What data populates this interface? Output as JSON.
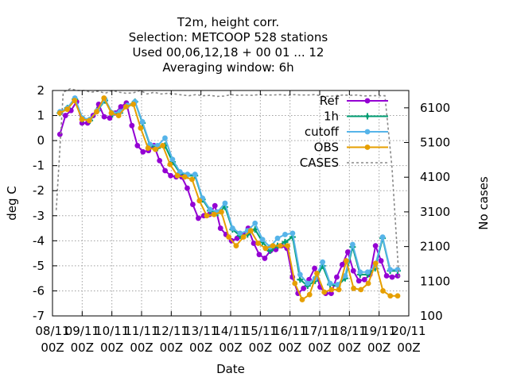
{
  "title_lines": [
    "T2m, height corr.",
    "Selection: METCOOP    528 stations",
    "Used  00,06,12,18 + 00 01 ... 12",
    "Averaging window:  6h"
  ],
  "chart_data": {
    "type": "line",
    "xlabel": "Date",
    "ylabel": "deg C",
    "y2label": "No cases",
    "xlim": [
      "2020-11-08 00Z",
      "2020-11-20 00Z"
    ],
    "ylim": [
      -7,
      2
    ],
    "y2lim": [
      100,
      6600
    ],
    "x_ticks": [
      "08/11\n00Z",
      "09/11\n00Z",
      "10/11\n00Z",
      "11/11\n00Z",
      "12/11\n00Z",
      "13/11\n00Z",
      "14/11\n00Z",
      "15/11\n00Z",
      "16/11\n00Z",
      "17/11\n00Z",
      "18/11\n00Z",
      "19/11\n00Z",
      "20/11\n00Z"
    ],
    "y_ticks": [
      "2",
      "1",
      "0",
      "-1",
      "-2",
      "-3",
      "-4",
      "-5",
      "-6",
      "-7"
    ],
    "y2_ticks": [
      "6100",
      "5100",
      "4100",
      "3100",
      "2100",
      "1100",
      "100"
    ],
    "x_hours": [
      6,
      9,
      12,
      15,
      18,
      21,
      24,
      27,
      30,
      33,
      36,
      39,
      42,
      45,
      48,
      51,
      54,
      57,
      60,
      63,
      66,
      69,
      72,
      75,
      78,
      81,
      84,
      87,
      90,
      93,
      96,
      99,
      102,
      105,
      108,
      111,
      114,
      117,
      120,
      123,
      126,
      129,
      132,
      135,
      138,
      141,
      144,
      147,
      150,
      153,
      156,
      159,
      162,
      165,
      168,
      171,
      174,
      177,
      180,
      183,
      186,
      189,
      192,
      195,
      198,
      201,
      204,
      207,
      210,
      213,
      216,
      219,
      222,
      225,
      228,
      231,
      234,
      237,
      240,
      243,
      246,
      249,
      252,
      255,
      258,
      261,
      264,
      267,
      270,
      273,
      276,
      279
    ],
    "series": [
      {
        "name": "Ref",
        "color": "#9400d3",
        "marker": "filled-circle",
        "values": [
          0.25,
          1.0,
          1.2,
          1.55,
          0.7,
          0.7,
          1.0,
          1.45,
          0.95,
          0.9,
          1.1,
          1.35,
          1.5,
          0.6,
          -0.2,
          -0.45,
          -0.4,
          -0.2,
          -0.8,
          -1.2,
          -1.4,
          -1.45,
          -1.45,
          -1.9,
          -2.55,
          -3.1,
          -3.0,
          -2.95,
          -2.6,
          -3.5,
          -3.75,
          -4.0,
          -3.9,
          -3.8,
          -3.5,
          -4.1,
          -4.55,
          -4.7,
          -4.4,
          -4.35,
          -4.2,
          -4.3,
          -5.45,
          -6.1,
          -5.9,
          -5.55,
          -5.1,
          -5.85,
          -6.1,
          -6.1,
          -5.45,
          -4.95,
          -4.45,
          -5.2,
          -5.6,
          -5.55,
          -5.35,
          -4.2,
          -4.8,
          -5.4,
          -5.45,
          -5.4
        ]
      },
      {
        "name": "1h",
        "color": "#009e73",
        "marker": "plus",
        "values": [
          1.1,
          1.3,
          1.65,
          0.85,
          0.8,
          1.2,
          1.6,
          1.05,
          1.1,
          1.4,
          1.55,
          0.7,
          -0.2,
          -0.3,
          -0.2,
          -0.85,
          -1.3,
          -1.4,
          -1.4,
          -2.35,
          -2.8,
          -2.9,
          -2.65,
          -3.55,
          -3.8,
          -3.75,
          -3.55,
          -4.05,
          -4.4,
          -4.2,
          -4.05,
          -3.85,
          -5.55,
          -5.8,
          -5.6,
          -5.0,
          -5.75,
          -5.8,
          -5.5,
          -4.25,
          -5.35,
          -5.35,
          -5.1,
          -3.9,
          -5.2,
          -5.2
        ]
      },
      {
        "name": "cutoff",
        "color": "#56b4e9",
        "marker": "filled-circle",
        "values": [
          1.15,
          1.3,
          1.7,
          0.9,
          0.85,
          1.2,
          1.65,
          1.1,
          1.15,
          1.4,
          1.55,
          0.75,
          -0.15,
          -0.2,
          0.1,
          -0.75,
          -1.25,
          -1.35,
          -1.35,
          -2.3,
          -2.75,
          -2.85,
          -2.5,
          -3.5,
          -3.7,
          -3.6,
          -3.3,
          -3.95,
          -4.25,
          -3.9,
          -3.75,
          -3.7,
          -5.35,
          -5.7,
          -5.5,
          -4.85,
          -5.7,
          -5.75,
          -5.4,
          -4.15,
          -5.25,
          -5.25,
          -5.0,
          -3.85,
          -5.15,
          -5.15
        ]
      },
      {
        "name": "OBS",
        "color": "#e69f00",
        "marker": "filled-circle",
        "values": [
          1.1,
          1.25,
          1.6,
          0.85,
          0.8,
          1.15,
          1.7,
          1.1,
          1.0,
          1.35,
          1.45,
          0.5,
          -0.3,
          -0.35,
          -0.2,
          -0.95,
          -1.4,
          -1.45,
          -1.55,
          -2.4,
          -3.0,
          -2.95,
          -2.85,
          -3.85,
          -4.2,
          -3.85,
          -3.6,
          -4.1,
          -4.3,
          -4.2,
          -4.2,
          -4.2,
          -5.7,
          -6.35,
          -6.15,
          -5.3,
          -6.05,
          -5.95,
          -5.95,
          -4.8,
          -5.9,
          -5.95,
          -5.7,
          -4.9,
          -6.0,
          -6.2,
          -6.2
        ]
      },
      {
        "name": "CASES",
        "color": "#888888",
        "marker": "none",
        "dash": true,
        "cases": [
          3150,
          6550,
          6650,
          6600,
          6600,
          6550,
          6580,
          6520,
          6600,
          6550,
          6520,
          6530,
          6600,
          6500,
          6550,
          6500,
          6520,
          6500,
          6470,
          6450,
          6480,
          6450,
          6460,
          6430,
          6440,
          6480,
          6460,
          6470,
          6460,
          6480,
          6470,
          6470,
          6480,
          6460,
          6480,
          6470,
          6470,
          6480,
          6440,
          6430,
          6450,
          6470,
          6460,
          6470,
          6440,
          6450,
          6450,
          6450,
          4400,
          1200
        ]
      }
    ],
    "legend_position": "top-right",
    "grid": true
  }
}
